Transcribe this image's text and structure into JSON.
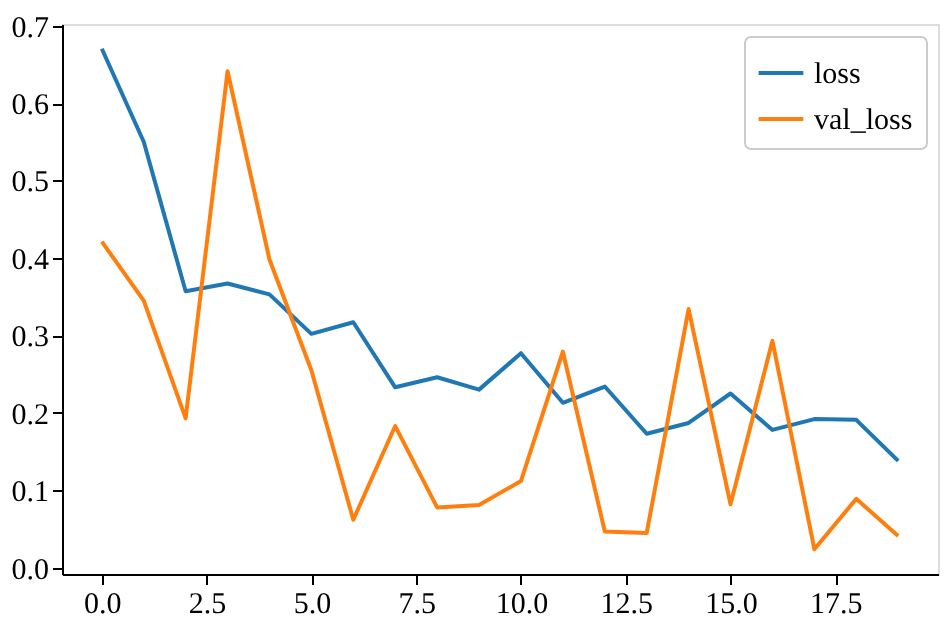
{
  "chart_data": {
    "type": "line",
    "x": [
      0,
      1,
      2,
      3,
      4,
      5,
      6,
      7,
      8,
      9,
      10,
      11,
      12,
      13,
      14,
      15,
      16,
      17,
      18,
      19
    ],
    "series": [
      {
        "name": "loss",
        "color": "#1f77b4",
        "values": [
          0.67,
          0.55,
          0.357,
          0.367,
          0.353,
          0.302,
          0.317,
          0.233,
          0.246,
          0.23,
          0.277,
          0.213,
          0.234,
          0.173,
          0.187,
          0.225,
          0.178,
          0.192,
          0.191,
          0.138
        ]
      },
      {
        "name": "val_loss",
        "color": "#ff7f0e",
        "values": [
          0.421,
          0.345,
          0.193,
          0.641,
          0.398,
          0.255,
          0.062,
          0.183,
          0.078,
          0.081,
          0.112,
          0.279,
          0.047,
          0.045,
          0.334,
          0.082,
          0.293,
          0.024,
          0.089,
          0.041
        ]
      }
    ],
    "xlim": [
      -0.95,
      19.95
    ],
    "xticks": [
      {
        "value": 0,
        "label": "0.0"
      },
      {
        "value": 2.5,
        "label": "2.5"
      },
      {
        "value": 5,
        "label": "5.0"
      },
      {
        "value": 7.5,
        "label": "7.5"
      },
      {
        "value": 10,
        "label": "10.0"
      },
      {
        "value": 12.5,
        "label": "12.5"
      },
      {
        "value": 15,
        "label": "15.0"
      },
      {
        "value": 17.5,
        "label": "17.5"
      }
    ],
    "ylim": [
      -0.008,
      0.702
    ],
    "yticks": [
      {
        "value": 0,
        "label": "0.0"
      },
      {
        "value": 0.1,
        "label": "0.1"
      },
      {
        "value": 0.2,
        "label": "0.2"
      },
      {
        "value": 0.3,
        "label": "0.3"
      },
      {
        "value": 0.4,
        "label": "0.4"
      },
      {
        "value": 0.5,
        "label": "0.5"
      },
      {
        "value": 0.6,
        "label": "0.6"
      },
      {
        "value": 0.7,
        "label": "0.7"
      }
    ],
    "legend": "top right",
    "grid": false,
    "marker": "none",
    "line_style": "solid"
  }
}
